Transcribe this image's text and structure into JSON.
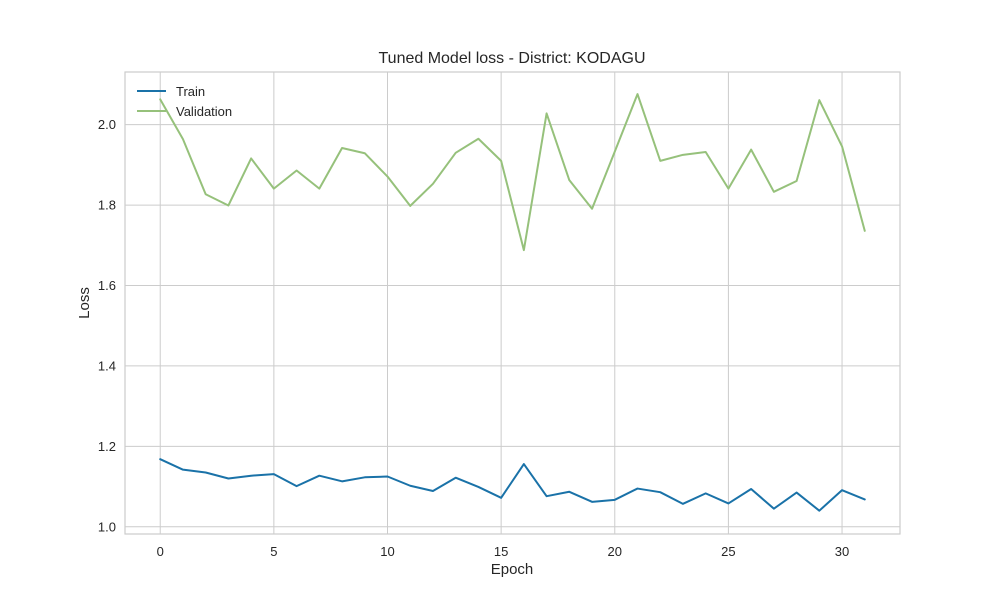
{
  "chart_data": {
    "type": "line",
    "title": "Tuned Model loss - District: KODAGU",
    "xlabel": "Epoch",
    "ylabel": "Loss",
    "xlim": [
      -1.55,
      32.55
    ],
    "ylim": [
      0.982,
      2.131
    ],
    "xticks": [
      0,
      5,
      10,
      15,
      20,
      25,
      30
    ],
    "yticks": [
      1.0,
      1.2,
      1.4,
      1.6,
      1.8,
      2.0
    ],
    "ytick_labels": [
      "1.0",
      "1.2",
      "1.4",
      "1.6",
      "1.8",
      "2.0"
    ],
    "grid": true,
    "legend": "top-left",
    "x": [
      0,
      1,
      2,
      3,
      4,
      5,
      6,
      7,
      8,
      9,
      10,
      11,
      12,
      13,
      14,
      15,
      16,
      17,
      18,
      19,
      20,
      21,
      22,
      23,
      24,
      25,
      26,
      27,
      28,
      29,
      30,
      31
    ],
    "series": [
      {
        "name": "Train",
        "color": "#1a72a8",
        "values": [
          1.168,
          1.142,
          1.135,
          1.12,
          1.127,
          1.131,
          1.101,
          1.127,
          1.113,
          1.123,
          1.125,
          1.102,
          1.089,
          1.122,
          1.099,
          1.072,
          1.156,
          1.076,
          1.087,
          1.062,
          1.067,
          1.095,
          1.086,
          1.057,
          1.083,
          1.058,
          1.094,
          1.045,
          1.085,
          1.04,
          1.091,
          1.068
        ]
      },
      {
        "name": "Validation",
        "color": "#96c17b",
        "values": [
          2.063,
          1.964,
          1.827,
          1.799,
          1.916,
          1.841,
          1.886,
          1.841,
          1.942,
          1.929,
          1.871,
          1.798,
          1.853,
          1.93,
          1.965,
          1.91,
          1.688,
          2.028,
          1.862,
          1.791,
          1.933,
          2.076,
          1.91,
          1.925,
          1.932,
          1.841,
          1.938,
          1.833,
          1.86,
          2.061,
          1.946,
          1.736
        ]
      }
    ]
  }
}
